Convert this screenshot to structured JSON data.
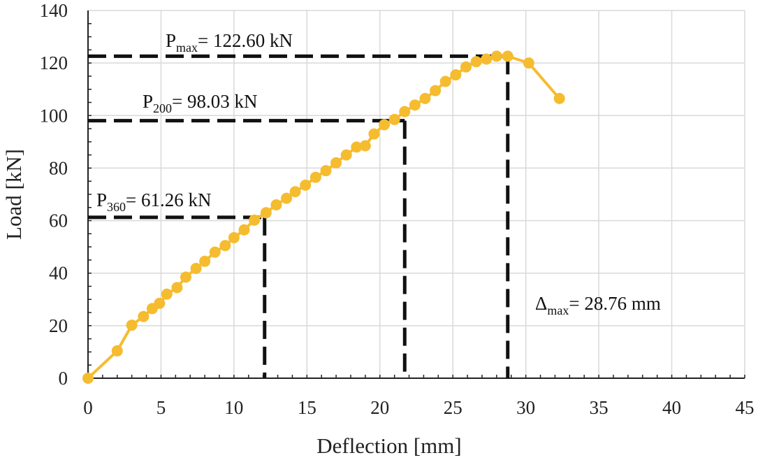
{
  "chart_data": {
    "type": "scatter",
    "xlabel": "Deflection [mm]",
    "ylabel": "Load [kN]",
    "xlim": [
      0,
      45
    ],
    "ylim": [
      0,
      140
    ],
    "xticks": [
      "0",
      "5",
      "10",
      "15",
      "20",
      "25",
      "30",
      "35",
      "40",
      "45"
    ],
    "yticks": [
      "0",
      "20",
      "40",
      "60",
      "80",
      "100",
      "120",
      "140"
    ],
    "grid": true,
    "series_color": "#F5BC2F",
    "series": [
      {
        "x": [
          0,
          2.0,
          3.0,
          3.8,
          4.4,
          4.9,
          5.4,
          6.1,
          6.7,
          7.4,
          8.0,
          8.7,
          9.4,
          10.0,
          10.7,
          11.4,
          12.2,
          12.9,
          13.6,
          14.2,
          14.9,
          15.6,
          16.3,
          17.0,
          17.7,
          18.4,
          19.0,
          19.6,
          20.3,
          21.0,
          21.7,
          22.4,
          23.1,
          23.8,
          24.5,
          25.2,
          25.9,
          26.6,
          27.3,
          28.0,
          28.76,
          30.2,
          32.3
        ],
        "y": [
          0,
          10.4,
          20.2,
          23.5,
          26.5,
          28.5,
          32.0,
          34.5,
          38.5,
          41.8,
          44.5,
          48.0,
          50.5,
          53.5,
          56.5,
          60.2,
          63.0,
          66.0,
          68.5,
          71.0,
          73.5,
          76.5,
          79.0,
          82.0,
          85.0,
          88.0,
          88.5,
          93.0,
          96.5,
          98.5,
          101.5,
          104.0,
          106.5,
          109.5,
          113.0,
          115.5,
          118.5,
          120.5,
          121.5,
          122.6,
          122.6,
          120.0,
          106.5
        ]
      }
    ],
    "reference_lines": [
      {
        "load": 122.6,
        "deflection": 28.76
      },
      {
        "load": 98.03,
        "deflection": 21.7
      },
      {
        "load": 61.26,
        "deflection": 12.1
      }
    ],
    "annotations": [
      {
        "id": "pmax",
        "main": "P",
        "sub": "max",
        "rest": "= 122.60 kN"
      },
      {
        "id": "p200",
        "main": "P",
        "sub": "200",
        "rest": "= 98.03 kN"
      },
      {
        "id": "p360",
        "main": "P",
        "sub": "360",
        "rest": "= 61.26 kN"
      },
      {
        "id": "dmax",
        "main": "Δ",
        "sub": "max",
        "rest": "= 28.76 mm"
      }
    ]
  }
}
